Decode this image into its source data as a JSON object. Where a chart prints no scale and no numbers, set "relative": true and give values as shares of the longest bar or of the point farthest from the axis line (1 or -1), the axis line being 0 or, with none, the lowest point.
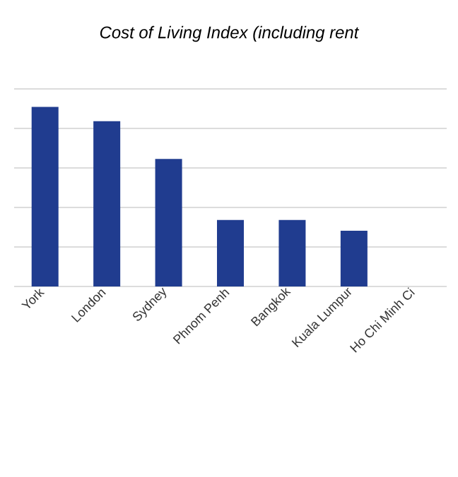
{
  "chart_data": {
    "type": "bar",
    "title": "Cost of Living Index (including rent",
    "categories": [
      "York",
      "London",
      "Sydney",
      "Phnom Penh",
      "Bangkok",
      "Kuala Lumpur",
      "Ho Chi Minh Ci"
    ],
    "values": [
      1,
      0.92,
      0.71,
      0.37,
      0.37,
      0.31,
      null
    ],
    "color": "#203c8f",
    "relative": true,
    "grid": "y"
  }
}
